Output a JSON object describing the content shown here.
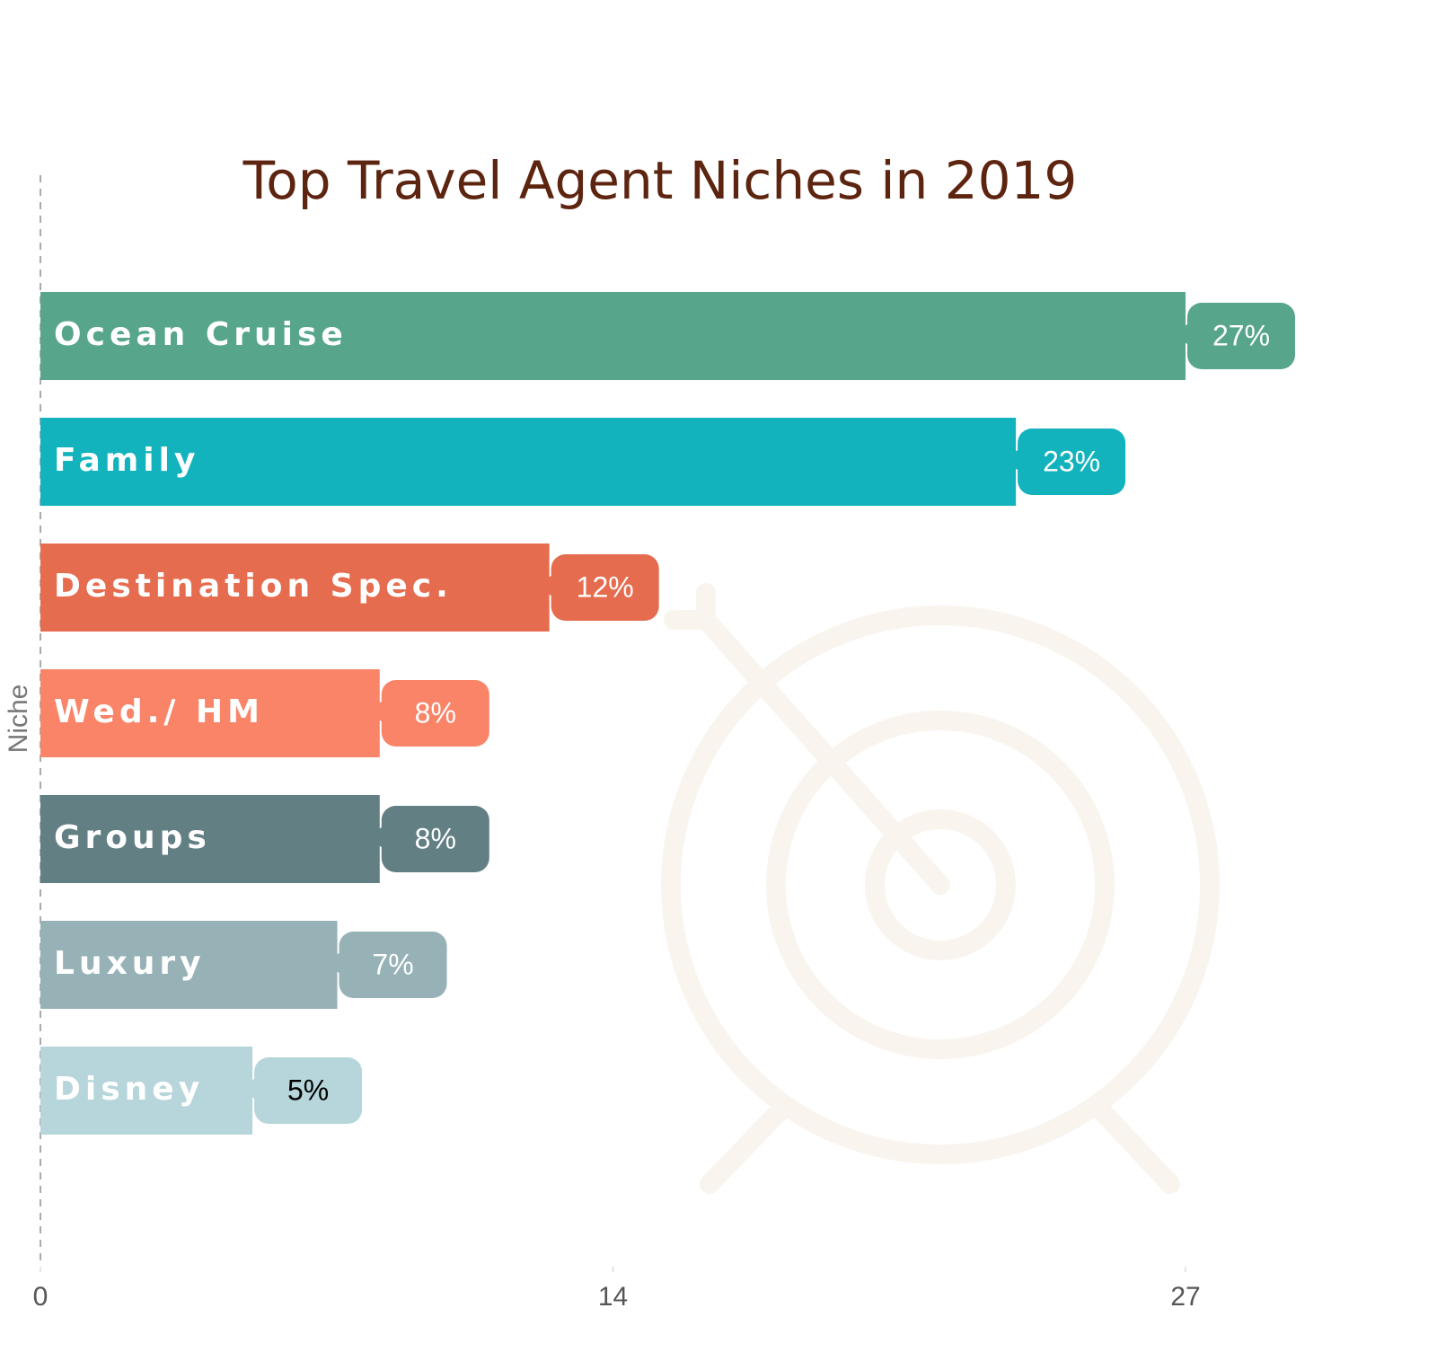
{
  "chart_data": {
    "type": "bar",
    "orientation": "horizontal",
    "title": "Top Travel Agent Niches in 2019",
    "y_label": "Niche",
    "categories": [
      "Ocean Cruise",
      "Family",
      "Destination Spec.",
      "Wed./ HM",
      "Groups",
      "Luxury",
      "Disney"
    ],
    "values": [
      27,
      23,
      12,
      8,
      8,
      7,
      5
    ],
    "value_labels": [
      "27%",
      "23%",
      "12%",
      "8%",
      "8%",
      "7%",
      "5%"
    ],
    "colors": [
      "#57a68c",
      "#12b3bd",
      "#e66c4f",
      "#f98468",
      "#627f84",
      "#96b2b7",
      "#b7d6db"
    ],
    "value_label_colors": [
      "#ffffff",
      "#ffffff",
      "#ffffff",
      "#ffffff",
      "#ffffff",
      "#ffffff",
      "#000000"
    ],
    "xlim": [
      0,
      27
    ],
    "xticks": [
      0,
      {
        "value": 13.5,
        "label": "14"
      },
      27
    ]
  }
}
